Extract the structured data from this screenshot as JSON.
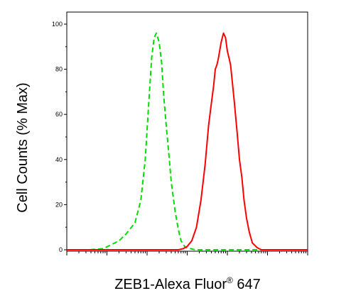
{
  "chart_data": {
    "type": "line",
    "title": "",
    "xlabel": {
      "main": "ZEB1-Alexa Fluor",
      "sup": "®",
      "suffix": " 647"
    },
    "ylabel": "Cell Counts (% Max)",
    "x_scale": "log",
    "xlim": [
      1,
      1000000
    ],
    "ylim": [
      0,
      100
    ],
    "yticks": [
      {
        "value": 0,
        "label": "0"
      },
      {
        "value": 20,
        "label": "20"
      },
      {
        "value": 40,
        "label": "40"
      },
      {
        "value": 60,
        "label": "60"
      },
      {
        "value": 80,
        "label": "80"
      },
      {
        "value": 100,
        "label": "100"
      }
    ],
    "grid": false,
    "legend": "none",
    "series": [
      {
        "color": "#00dd00",
        "style": "dashed",
        "x": [
          1,
          3.5,
          8,
          12,
          20,
          30,
          50,
          70,
          90,
          110,
          130,
          150,
          170,
          200,
          230,
          260,
          300,
          350,
          400,
          500,
          600,
          700,
          900,
          1200,
          1600,
          2500,
          4000,
          1000000
        ],
        "y": [
          0,
          0,
          0.5,
          2,
          4,
          7,
          12,
          22,
          40,
          65,
          85,
          94,
          96,
          92,
          83,
          68,
          55,
          42,
          30,
          17,
          9,
          4,
          1,
          0.5,
          0,
          0,
          0,
          0
        ]
      },
      {
        "color": "#ff0000",
        "style": "solid",
        "x": [
          1,
          600,
          800,
          1000,
          1300,
          1700,
          2200,
          2800,
          3400,
          4000,
          4500,
          5000,
          5500,
          6000,
          7000,
          8000,
          9000,
          10000,
          11000,
          12000,
          13000,
          15000,
          17500,
          20000,
          23000,
          26000,
          30000,
          35000,
          42000,
          55000,
          70000,
          100000,
          1000000
        ],
        "y": [
          0,
          0,
          0.5,
          1.5,
          4,
          10,
          22,
          38,
          55,
          65,
          72,
          80,
          82,
          85,
          92,
          96,
          94,
          88,
          85,
          82,
          76,
          65,
          52,
          40,
          32,
          22,
          14,
          8,
          3,
          1,
          0,
          0,
          0
        ]
      }
    ]
  }
}
